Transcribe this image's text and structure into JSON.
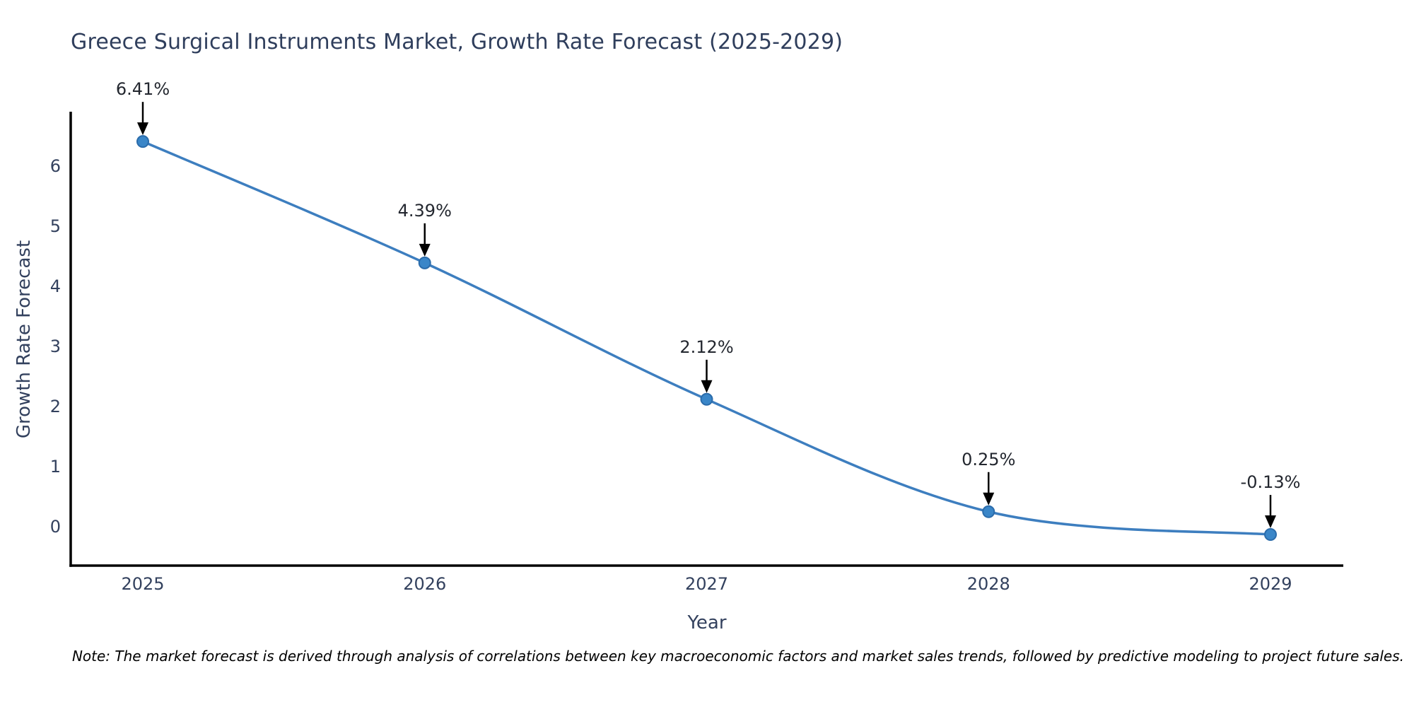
{
  "title": "Greece Surgical Instruments Market, Growth Rate Forecast (2025-2029)",
  "note": "Note: The market forecast is derived through analysis of correlations between key macroeconomic factors and market sales trends, followed by predictive modeling to project future sales.",
  "chart_data": {
    "type": "line",
    "title": "Greece Surgical Instruments Market, Growth Rate Forecast (2025-2029)",
    "xlabel": "Year",
    "ylabel": "Growth Rate Forecast",
    "x": [
      2025,
      2026,
      2027,
      2028,
      2029
    ],
    "categories": [
      "2025",
      "2026",
      "2027",
      "2028",
      "2029"
    ],
    "values": [
      6.41,
      4.39,
      2.12,
      0.25,
      -0.13
    ],
    "point_labels": [
      "6.41%",
      "4.39%",
      "2.12%",
      "0.25%",
      "-0.13%"
    ],
    "yticks": [
      0,
      1,
      2,
      3,
      4,
      5,
      6
    ],
    "ylim": [
      -0.65,
      6.88
    ],
    "grid": false,
    "legend_position": "none",
    "annotation_style": "label-with-down-arrow",
    "colors": {
      "line": "#3d7ebf",
      "marker_fill": "#3a86c8",
      "marker_edge": "#2b6cab",
      "spine": "#000000",
      "arrow": "#000000",
      "tick_text": "#33415e",
      "title_text": "#2f3e5c",
      "annotation_text": "#23272f",
      "note_text": "#000000"
    }
  }
}
